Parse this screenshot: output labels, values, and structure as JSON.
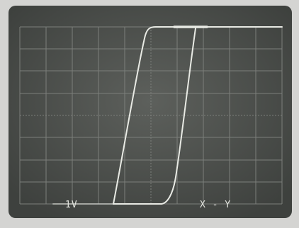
{
  "screen": {
    "volts_per_div": "1V",
    "mode": "X - Y"
  }
}
